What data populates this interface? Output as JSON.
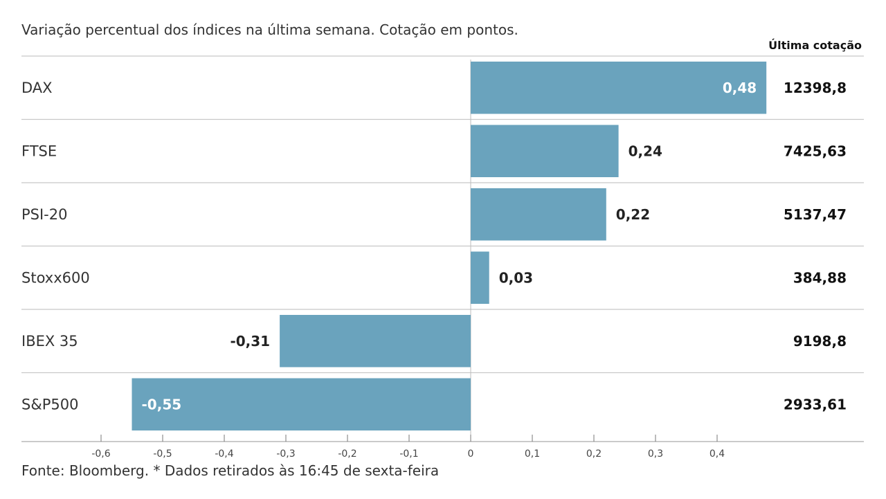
{
  "header": {
    "subtitle": "Variação percentual dos índices na última semana. Cotação em pontos.",
    "last_quote_heading": "Última cotação"
  },
  "footer": {
    "source": "Fonte: Bloomberg.  * Dados retirados às 16:45 de sexta-feira"
  },
  "colors": {
    "bar": "#6aa3bd",
    "grid": "#c8c8c8",
    "label_on_bar": "#ffffff",
    "label_outside": "#222222"
  },
  "chart_data": {
    "type": "bar",
    "orientation": "horizontal",
    "categories": [
      "DAX",
      "FTSE",
      "PSI-20",
      "Stoxx600",
      "IBEX 35",
      "S&P500"
    ],
    "values": [
      0.48,
      0.24,
      0.22,
      0.03,
      -0.31,
      -0.55
    ],
    "value_labels": [
      "0,48",
      "0,24",
      "0,22",
      "0,03",
      "-0,31",
      "-0,55"
    ],
    "last_quote": [
      "12398,8",
      "7425,63",
      "5137,47",
      "384,88",
      "9198,8",
      "2933,61"
    ],
    "xlim": [
      -0.6,
      0.4
    ],
    "ticks": [
      -0.6,
      -0.5,
      -0.4,
      -0.3,
      -0.2,
      -0.1,
      0,
      0.1,
      0.2,
      0.3,
      0.4
    ],
    "tick_labels": [
      "-0,6",
      "-0,5",
      "-0,4",
      "-0,3",
      "-0,2",
      "-0,1",
      "0",
      "0,1",
      "0,2",
      "0,3",
      "0,4"
    ],
    "grid": false,
    "legend": "none"
  }
}
